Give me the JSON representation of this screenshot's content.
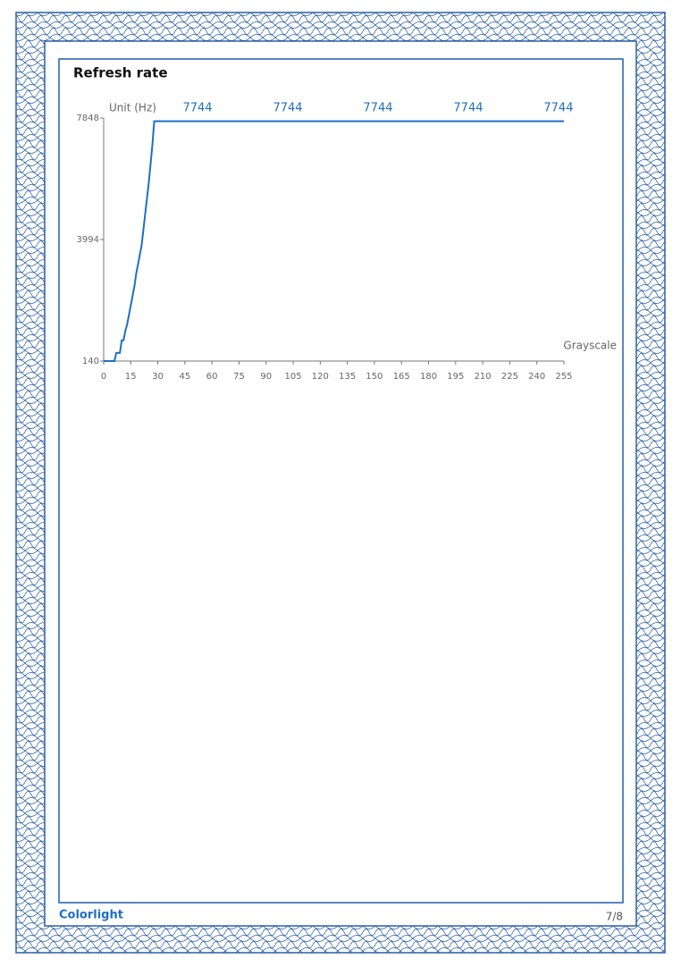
{
  "page": {
    "title": "Refresh rate",
    "footer_brand": "Colorlight",
    "page_number": "7/8"
  },
  "chart_data": {
    "type": "line",
    "y_label": "Unit (Hz)",
    "x_label": "Grayscale",
    "x": [
      0,
      6,
      7,
      9,
      10,
      11,
      12,
      13,
      14,
      15,
      16,
      17,
      18,
      19,
      20,
      21,
      22,
      23,
      24,
      25,
      26,
      27,
      28,
      255
    ],
    "series": [
      {
        "name": "Refresh rate",
        "color": "#1f6fc0",
        "values": [
          140,
          140,
          400,
          400,
          800,
          800,
          1100,
          1300,
          1600,
          1900,
          2200,
          2500,
          2900,
          3200,
          3500,
          3800,
          4300,
          4800,
          5300,
          5800,
          6400,
          7000,
          7744,
          7744
        ]
      }
    ],
    "annotations": [
      {
        "x": 52,
        "value": 7744
      },
      {
        "x": 102,
        "value": 7744
      },
      {
        "x": 152,
        "value": 7744
      },
      {
        "x": 202,
        "value": 7744
      },
      {
        "x": 252,
        "value": 7744
      }
    ],
    "xlim": [
      0,
      255
    ],
    "xticks": [
      0,
      15,
      30,
      45,
      60,
      75,
      90,
      105,
      120,
      135,
      150,
      165,
      180,
      195,
      210,
      225,
      240,
      255
    ],
    "ylim": [
      140,
      7848
    ],
    "yticks": [
      140,
      3994,
      7848
    ]
  }
}
